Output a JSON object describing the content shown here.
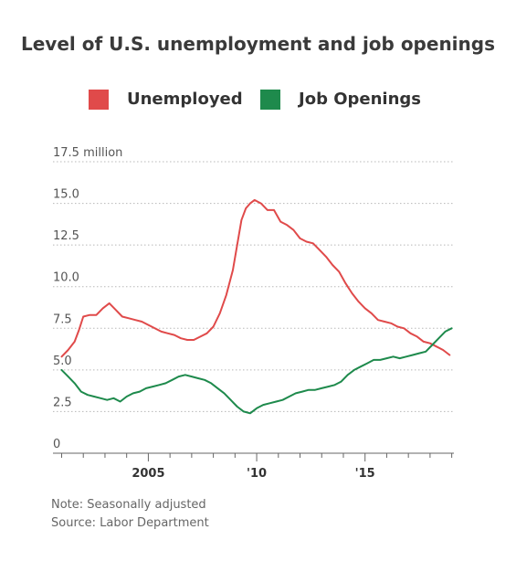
{
  "title": "Level of U.S. unemployment and job openings",
  "notes": {
    "line1": "Note: Seasonally adjusted",
    "line2": "Source: Labor Department"
  },
  "colors": {
    "unemployed": "#e04a4a",
    "job_openings": "#1e8a4c"
  },
  "chart_data": {
    "type": "line",
    "title": "Level of U.S. unemployment and job openings",
    "ylabel": "",
    "ylim": [
      0,
      17.5
    ],
    "xlim": [
      2000.6,
      2019.1
    ],
    "yticks": [
      {
        "value": 0,
        "label": "0"
      },
      {
        "value": 2.5,
        "label": "2.5"
      },
      {
        "value": 5.0,
        "label": "5.0"
      },
      {
        "value": 7.5,
        "label": "7.5"
      },
      {
        "value": 10.0,
        "label": "10.0"
      },
      {
        "value": 12.5,
        "label": "12.5"
      },
      {
        "value": 15.0,
        "label": "15.0"
      },
      {
        "value": 17.5,
        "label": "17.5 million"
      }
    ],
    "xticks": [
      {
        "value": 2005,
        "label": "2005"
      },
      {
        "value": 2010,
        "label": "'10"
      },
      {
        "value": 2015,
        "label": "'15"
      }
    ],
    "grid": true,
    "legend_position": "top",
    "series": [
      {
        "name": "Unemployed",
        "x": [
          2001.0,
          2001.3,
          2001.6,
          2001.8,
          2002.0,
          2002.3,
          2002.6,
          2002.9,
          2003.2,
          2003.5,
          2003.8,
          2004.1,
          2004.4,
          2004.7,
          2005.0,
          2005.3,
          2005.6,
          2005.9,
          2006.2,
          2006.5,
          2006.8,
          2007.1,
          2007.4,
          2007.7,
          2008.0,
          2008.3,
          2008.6,
          2008.9,
          2009.1,
          2009.3,
          2009.5,
          2009.7,
          2009.9,
          2010.2,
          2010.5,
          2010.8,
          2011.1,
          2011.4,
          2011.7,
          2012.0,
          2012.3,
          2012.6,
          2012.9,
          2013.2,
          2013.5,
          2013.8,
          2014.1,
          2014.4,
          2014.7,
          2015.0,
          2015.3,
          2015.6,
          2015.9,
          2016.2,
          2016.5,
          2016.8,
          2017.1,
          2017.4,
          2017.7,
          2018.0,
          2018.3,
          2018.6,
          2018.9
        ],
        "values": [
          5.8,
          6.2,
          6.7,
          7.4,
          8.2,
          8.3,
          8.3,
          8.7,
          9.0,
          8.6,
          8.2,
          8.1,
          8.0,
          7.9,
          7.7,
          7.5,
          7.3,
          7.2,
          7.1,
          6.9,
          6.8,
          6.8,
          7.0,
          7.2,
          7.6,
          8.4,
          9.5,
          11.0,
          12.5,
          14.0,
          14.7,
          15.0,
          15.2,
          15.0,
          14.6,
          14.6,
          13.9,
          13.7,
          13.4,
          12.9,
          12.7,
          12.6,
          12.2,
          11.8,
          11.3,
          10.9,
          10.2,
          9.6,
          9.1,
          8.7,
          8.4,
          8.0,
          7.9,
          7.8,
          7.6,
          7.5,
          7.2,
          7.0,
          6.7,
          6.6,
          6.4,
          6.2,
          5.9
        ]
      },
      {
        "name": "Job Openings",
        "x": [
          2001.0,
          2001.3,
          2001.6,
          2001.9,
          2002.2,
          2002.5,
          2002.8,
          2003.1,
          2003.4,
          2003.7,
          2004.0,
          2004.3,
          2004.6,
          2004.9,
          2005.2,
          2005.5,
          2005.8,
          2006.1,
          2006.4,
          2006.7,
          2007.0,
          2007.3,
          2007.6,
          2007.9,
          2008.2,
          2008.5,
          2008.8,
          2009.1,
          2009.4,
          2009.7,
          2010.0,
          2010.3,
          2010.6,
          2010.9,
          2011.2,
          2011.5,
          2011.8,
          2012.1,
          2012.4,
          2012.7,
          2013.0,
          2013.3,
          2013.6,
          2013.9,
          2014.2,
          2014.5,
          2014.8,
          2015.1,
          2015.4,
          2015.7,
          2016.0,
          2016.3,
          2016.6,
          2016.9,
          2017.2,
          2017.5,
          2017.8,
          2018.1,
          2018.4,
          2018.7,
          2019.0
        ],
        "values": [
          5.0,
          4.6,
          4.2,
          3.7,
          3.5,
          3.4,
          3.3,
          3.2,
          3.3,
          3.1,
          3.4,
          3.6,
          3.7,
          3.9,
          4.0,
          4.1,
          4.2,
          4.4,
          4.6,
          4.7,
          4.6,
          4.5,
          4.4,
          4.2,
          3.9,
          3.6,
          3.2,
          2.8,
          2.5,
          2.4,
          2.7,
          2.9,
          3.0,
          3.1,
          3.2,
          3.4,
          3.6,
          3.7,
          3.8,
          3.8,
          3.9,
          4.0,
          4.1,
          4.3,
          4.7,
          5.0,
          5.2,
          5.4,
          5.6,
          5.6,
          5.7,
          5.8,
          5.7,
          5.8,
          5.9,
          6.0,
          6.1,
          6.5,
          6.9,
          7.3,
          7.5
        ]
      }
    ]
  }
}
